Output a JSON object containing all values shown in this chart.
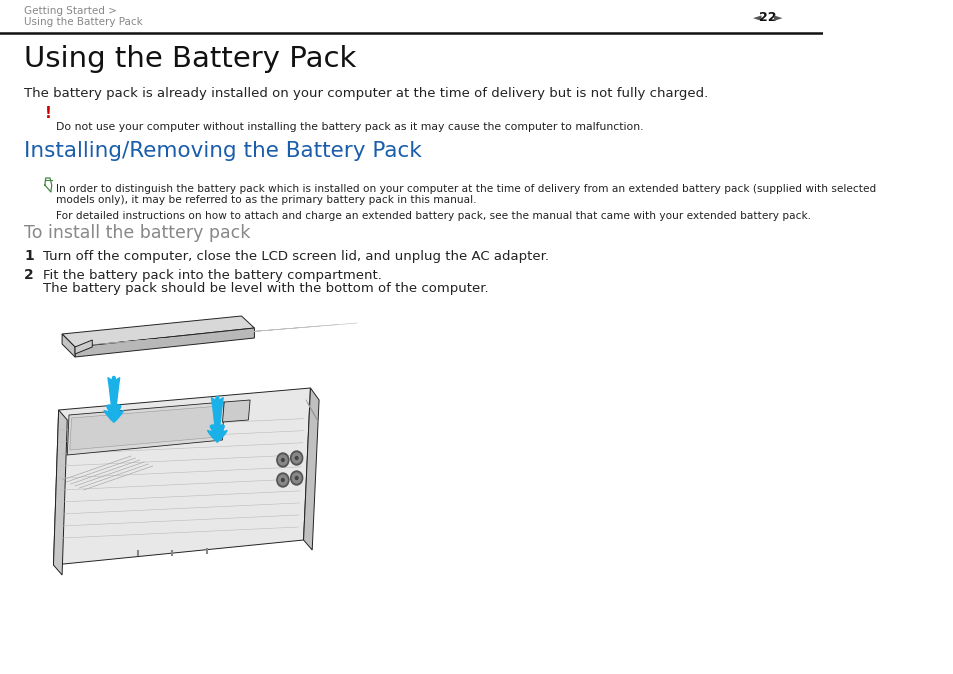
{
  "bg_color": "#ffffff",
  "header_line1": "Getting Started >",
  "header_line2": "Using the Battery Pack",
  "header_page_num": "22",
  "title_main": "Using the Battery Pack",
  "body_intro": "The battery pack is already installed on your computer at the time of delivery but is not fully charged.",
  "warning_bang": "!",
  "warning_bang_color": "#cc0000",
  "warning_text": "Do not use your computer without installing the battery pack as it may cause the computer to malfunction.",
  "section_title": "Installing/Removing the Battery Pack",
  "section_title_color": "#1a5dab",
  "note_text_line1": "In order to distinguish the battery pack which is installed on your computer at the time of delivery from an extended battery pack (supplied with selected",
  "note_text_line2": "models only), it may be referred to as the primary battery pack in this manual.",
  "note_text2": "For detailed instructions on how to attach and charge an extended battery pack, see the manual that came with your extended battery pack.",
  "subsection_title": "To install the battery pack",
  "subsection_color": "#888888",
  "step1_num": "1",
  "step1_text": "Turn off the computer, close the LCD screen lid, and unplug the AC adapter.",
  "step2_num": "2",
  "step2_text_line1": "Fit the battery pack into the battery compartment.",
  "step2_text_line2": "The battery pack should be level with the bottom of the computer.",
  "arrow_color": "#1ab0e8",
  "outline_color": "#222222",
  "text_color": "#222222"
}
